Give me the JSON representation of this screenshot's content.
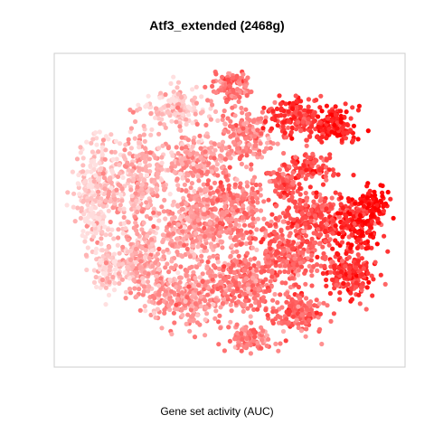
{
  "chart_data": {
    "type": "scatter",
    "title": "Atf3_extended (2468g)",
    "xlabel": "Gene set activity (AUC)",
    "ylabel": "",
    "grid": false,
    "legend": "none",
    "color_scale": {
      "low": "#FFE0E0",
      "high": "#FF0000",
      "meaning": "AUC"
    },
    "frame_color": "#CCCCCC"
  }
}
